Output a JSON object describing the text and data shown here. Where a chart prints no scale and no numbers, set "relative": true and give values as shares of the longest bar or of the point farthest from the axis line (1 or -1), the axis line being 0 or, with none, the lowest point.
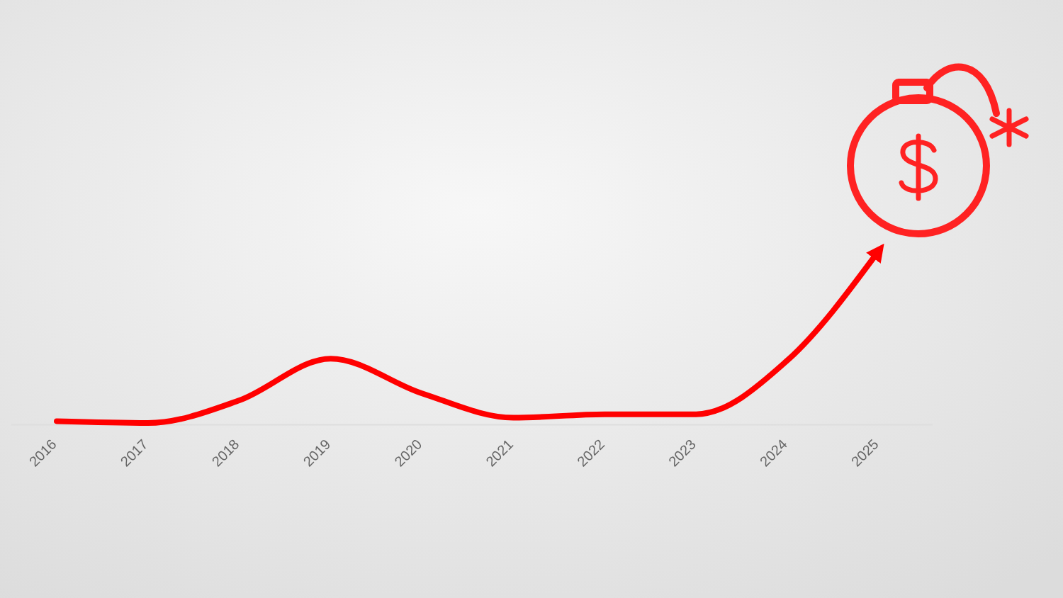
{
  "chart_data": {
    "type": "line",
    "relative": true,
    "categories": [
      "2016",
      "2017",
      "2018",
      "2019",
      "2020",
      "2021",
      "2022",
      "2023",
      "2024",
      "2025"
    ],
    "series": [
      {
        "color": "#ff0000",
        "values": [
          0.02,
          0.01,
          0.14,
          0.38,
          0.18,
          0.04,
          0.06,
          0.06,
          0.37,
          1
        ]
      }
    ]
  }
}
